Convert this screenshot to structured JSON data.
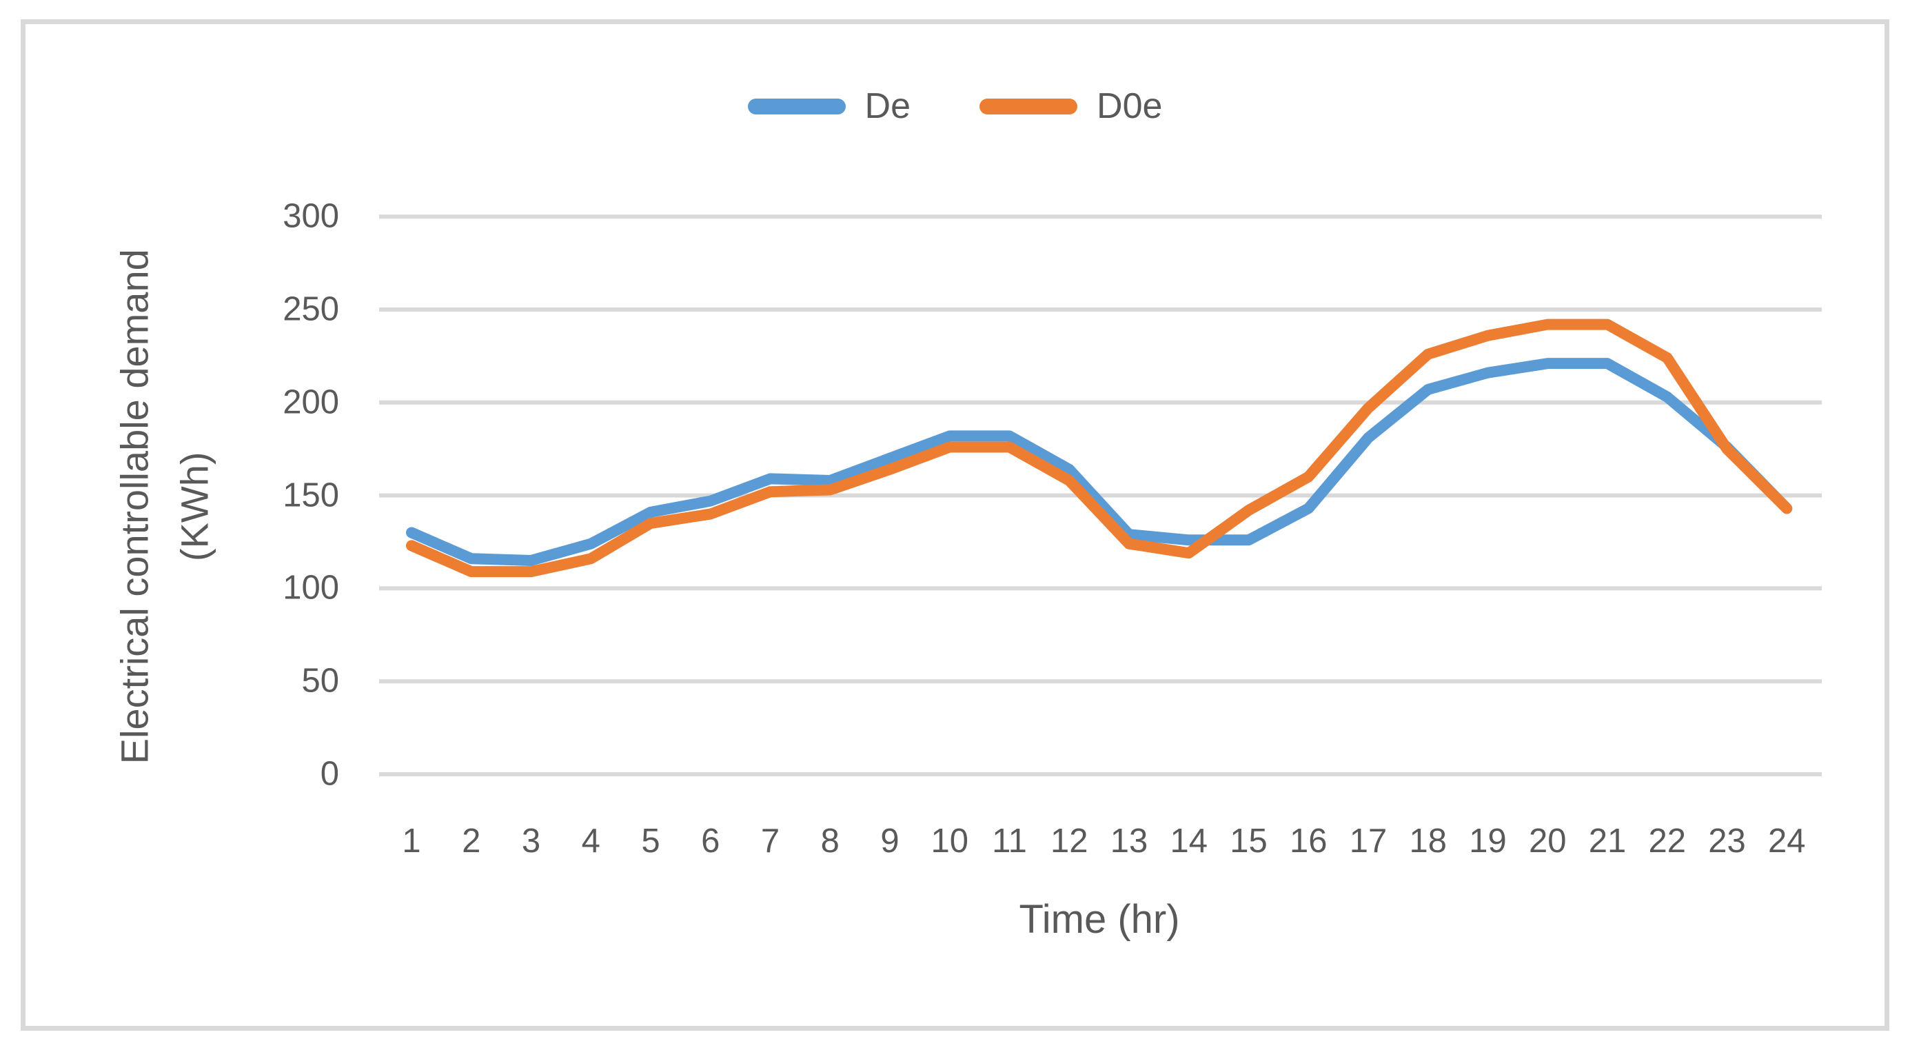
{
  "chart_data": {
    "type": "line",
    "x": [
      1,
      2,
      3,
      4,
      5,
      6,
      7,
      8,
      9,
      10,
      11,
      12,
      13,
      14,
      15,
      16,
      17,
      18,
      19,
      20,
      21,
      22,
      23,
      24
    ],
    "series": [
      {
        "name": "De",
        "color": "#5B9BD5",
        "values": [
          130,
          116,
          115,
          124,
          141,
          147,
          159,
          158,
          170,
          182,
          182,
          164,
          129,
          126,
          126,
          143,
          181,
          207,
          216,
          221,
          221,
          203,
          176,
          143
        ]
      },
      {
        "name": "D0e",
        "color": "#ED7D31",
        "values": [
          123,
          109,
          109,
          116,
          135,
          140,
          152,
          153,
          164,
          176,
          176,
          158,
          124,
          119,
          142,
          160,
          197,
          226,
          236,
          242,
          242,
          224,
          175,
          143
        ]
      }
    ],
    "title": "",
    "xlabel": "Time (hr)",
    "ylabel_line1": "Electrical controllable demand",
    "ylabel_line2": "(KWh)",
    "ylim": [
      0,
      300
    ],
    "ytick_step": 50,
    "yticks": [
      "300",
      "250",
      "200",
      "150",
      "100",
      "50",
      "0"
    ],
    "ytick_values": [
      300,
      250,
      200,
      150,
      100,
      50,
      0
    ],
    "xticks": [
      "1",
      "2",
      "3",
      "4",
      "5",
      "6",
      "7",
      "8",
      "9",
      "10",
      "11",
      "12",
      "13",
      "14",
      "15",
      "16",
      "17",
      "18",
      "19",
      "20",
      "21",
      "22",
      "23",
      "24"
    ],
    "grid": "horizontal",
    "legend_position": "top-center",
    "grid_color": "#D9D9D9",
    "text_color": "#595959",
    "background_color": "#FFFFFF",
    "border_color": "#D9D9D9"
  }
}
